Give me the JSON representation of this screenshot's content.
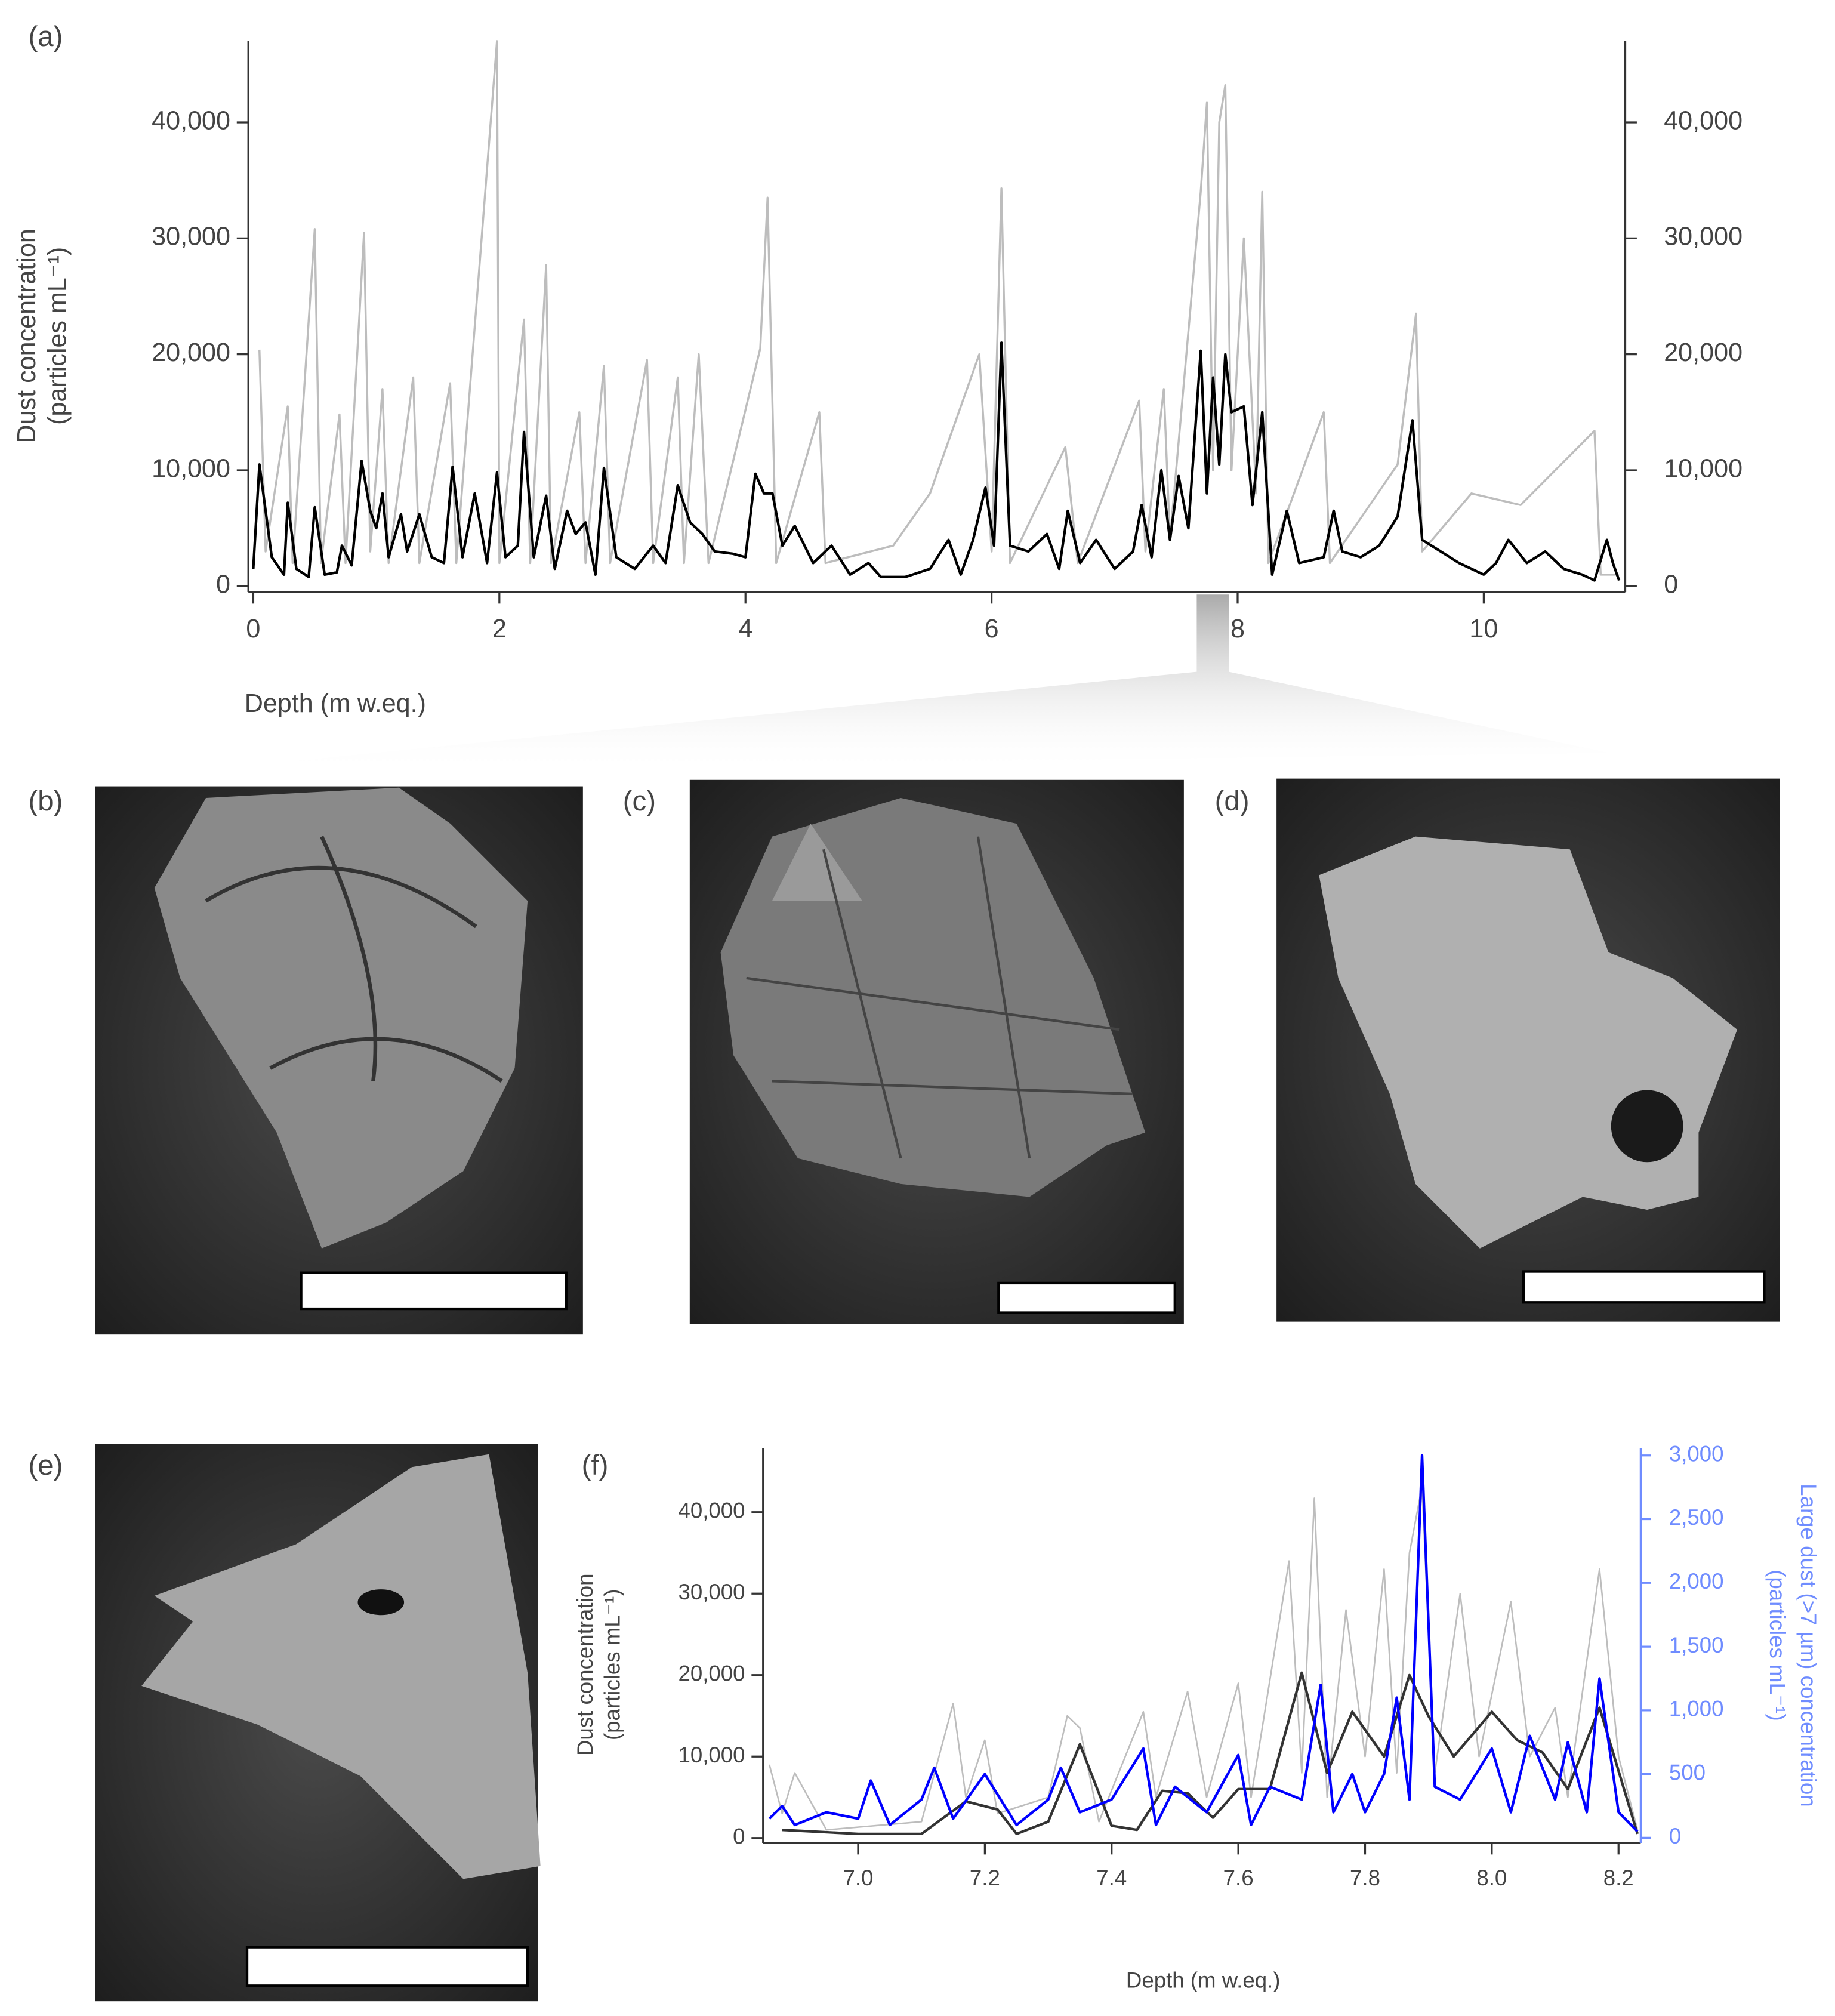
{
  "panel_labels": [
    "(a)",
    "(b)",
    "(c)",
    "(d)",
    "(e)",
    "(f)"
  ],
  "chart_data": [
    {
      "type": "line",
      "xlabel": "Depth (m w.eq.)",
      "ylabel": [
        "Dust concentration",
        "(particles mL⁻¹)"
      ],
      "xlim": [
        -0.04,
        11.15
      ],
      "ylim": [
        -500,
        47000
      ],
      "xticks": [
        0,
        2,
        4,
        6,
        8,
        10
      ],
      "yticks": [
        0,
        {
          "value": 10000,
          "label": "10,000"
        },
        {
          "value": 20000,
          "label": "20,000"
        },
        {
          "value": 30000,
          "label": "30,000"
        },
        {
          "value": 40000,
          "label": "40,000"
        }
      ],
      "mirror_y_axis": true,
      "series": [
        {
          "color": "#bdbdbd",
          "x": [
            0.05,
            0.1,
            0.28,
            0.32,
            0.5,
            0.55,
            0.7,
            0.75,
            0.9,
            0.95,
            1.05,
            1.1,
            1.3,
            1.35,
            1.6,
            1.65,
            1.98,
            2.0,
            2.2,
            2.25,
            2.38,
            2.42,
            2.65,
            2.7,
            2.85,
            2.9,
            3.2,
            3.25,
            3.45,
            3.5,
            3.62,
            3.7,
            4.12,
            4.18,
            4.25,
            4.6,
            4.65,
            5.2,
            5.5,
            5.9,
            6.0,
            6.08,
            6.15,
            6.6,
            6.7,
            7.2,
            7.25,
            7.4,
            7.45,
            7.7,
            7.75,
            7.8,
            7.85,
            7.9,
            7.95,
            8.05,
            8.15,
            8.2,
            8.25,
            8.7,
            8.75,
            9.3,
            9.45,
            9.5,
            9.9,
            10.3,
            10.9,
            10.95,
            11.1
          ],
          "values": [
            20400,
            3000,
            15500,
            2000,
            30800,
            2000,
            14800,
            2000,
            30500,
            3000,
            17000,
            2000,
            18000,
            2000,
            17500,
            2000,
            47000,
            2000,
            23000,
            2000,
            27700,
            2000,
            15000,
            2000,
            19000,
            2000,
            19500,
            2000,
            18000,
            2000,
            20000,
            2000,
            20500,
            33500,
            2000,
            15000,
            2000,
            3500,
            8000,
            20000,
            3000,
            34300,
            2000,
            12000,
            2000,
            16000,
            3000,
            17000,
            4000,
            34000,
            41700,
            10000,
            40000,
            43200,
            10000,
            30000,
            8000,
            34000,
            2000,
            15000,
            2000,
            10500,
            23500,
            3000,
            8000,
            7000,
            13400,
            1000,
            1000
          ]
        },
        {
          "color": "#000000",
          "x": [
            0,
            0.05,
            0.15,
            0.25,
            0.28,
            0.35,
            0.45,
            0.5,
            0.58,
            0.68,
            0.72,
            0.8,
            0.88,
            0.95,
            1.0,
            1.05,
            1.1,
            1.2,
            1.25,
            1.35,
            1.45,
            1.55,
            1.62,
            1.7,
            1.8,
            1.9,
            1.98,
            2.05,
            2.15,
            2.2,
            2.28,
            2.38,
            2.45,
            2.55,
            2.62,
            2.7,
            2.78,
            2.85,
            2.95,
            3.1,
            3.25,
            3.35,
            3.45,
            3.55,
            3.65,
            3.75,
            3.9,
            4.0,
            4.08,
            4.15,
            4.22,
            4.3,
            4.4,
            4.55,
            4.7,
            4.85,
            5.0,
            5.1,
            5.3,
            5.5,
            5.65,
            5.75,
            5.85,
            5.95,
            6.02,
            6.08,
            6.15,
            6.3,
            6.45,
            6.55,
            6.62,
            6.72,
            6.85,
            7.0,
            7.15,
            7.22,
            7.3,
            7.38,
            7.45,
            7.52,
            7.6,
            7.7,
            7.75,
            7.8,
            7.85,
            7.9,
            7.95,
            8.05,
            8.12,
            8.2,
            8.28,
            8.4,
            8.5,
            8.7,
            8.78,
            8.85,
            9.0,
            9.15,
            9.3,
            9.42,
            9.5,
            9.65,
            9.8,
            9.9,
            10.0,
            10.1,
            10.2,
            10.35,
            10.5,
            10.65,
            10.8,
            10.9,
            11.0,
            11.05,
            11.1
          ],
          "values": [
            1500,
            10500,
            2500,
            1000,
            7200,
            1500,
            800,
            6800,
            1000,
            1200,
            3500,
            1800,
            10800,
            6500,
            5000,
            8000,
            2500,
            6200,
            3000,
            6200,
            2500,
            2000,
            10300,
            2500,
            8000,
            2000,
            9800,
            2500,
            3500,
            13300,
            2500,
            7800,
            1500,
            6500,
            4500,
            5500,
            1000,
            10200,
            2500,
            1500,
            3500,
            2000,
            8700,
            5500,
            4500,
            3000,
            2800,
            2500,
            9700,
            8000,
            8000,
            3500,
            5200,
            2000,
            3500,
            1000,
            2000,
            800,
            800,
            1500,
            4000,
            1000,
            4000,
            8500,
            3500,
            21000,
            3500,
            3000,
            4500,
            1500,
            6500,
            2000,
            4000,
            1500,
            3000,
            7000,
            2500,
            10000,
            4000,
            9500,
            5000,
            20300,
            8000,
            18000,
            10500,
            20000,
            15000,
            15500,
            7000,
            15000,
            1000,
            6500,
            2000,
            2500,
            6500,
            3000,
            2500,
            3500,
            6000,
            14300,
            4000,
            3000,
            2000,
            1500,
            1000,
            2000,
            4000,
            2000,
            3000,
            1500,
            1000,
            500,
            4000,
            2000,
            500
          ]
        }
      ]
    },
    {
      "type": "line",
      "xlabel": "Depth (m w.eq.)",
      "ylabel": [
        "Dust concentration",
        "(particles mL⁻¹)"
      ],
      "y2label": [
        "Large dust (>7 µm) concentration",
        "(particles mL⁻¹)"
      ],
      "y2color": "#6f8cff",
      "xlim": [
        6.85,
        8.235
      ],
      "ylim": [
        -600,
        47900
      ],
      "y2lim": [
        -40,
        3060
      ],
      "xticks": [
        {
          "value": 7.0,
          "label": "7.0"
        },
        7.2,
        7.4,
        7.6,
        7.8,
        {
          "value": 8.0,
          "label": "8.0"
        },
        8.2
      ],
      "yticks": [
        0,
        {
          "value": 10000,
          "label": "10,000"
        },
        {
          "value": 20000,
          "label": "20,000"
        },
        {
          "value": 30000,
          "label": "30,000"
        },
        {
          "value": 40000,
          "label": "40,000"
        }
      ],
      "y2ticks": [
        0,
        500,
        {
          "value": 1000,
          "label": "1,000"
        },
        {
          "value": 1500,
          "label": "1,500"
        },
        {
          "value": 2000,
          "label": "2,000"
        },
        {
          "value": 2500,
          "label": "2,500"
        },
        {
          "value": 3000,
          "label": "3,000"
        }
      ],
      "series": [
        {
          "color": "#bdbdbd",
          "x": [
            6.86,
            6.88,
            6.9,
            6.95,
            7.1,
            7.15,
            7.17,
            7.2,
            7.22,
            7.3,
            7.33,
            7.35,
            7.38,
            7.45,
            7.47,
            7.52,
            7.55,
            7.6,
            7.62,
            7.68,
            7.7,
            7.72,
            7.74,
            7.77,
            7.8,
            7.83,
            7.85,
            7.87,
            7.89,
            7.91,
            7.95,
            7.98,
            8.03,
            8.06,
            8.1,
            8.12,
            8.17,
            8.2,
            8.23
          ],
          "values": [
            9000,
            3000,
            8000,
            1000,
            2000,
            16500,
            5000,
            12000,
            3000,
            5000,
            15000,
            13500,
            2000,
            15500,
            5000,
            18000,
            5000,
            19000,
            5000,
            34000,
            8000,
            41700,
            5000,
            28000,
            10000,
            33000,
            8000,
            35000,
            43200,
            8000,
            30000,
            10000,
            29000,
            10000,
            16000,
            5000,
            33000,
            10000,
            1000
          ]
        },
        {
          "color": "#333333",
          "x": [
            6.88,
            7.0,
            7.1,
            7.17,
            7.22,
            7.25,
            7.3,
            7.35,
            7.4,
            7.44,
            7.48,
            7.52,
            7.56,
            7.6,
            7.65,
            7.7,
            7.74,
            7.78,
            7.83,
            7.87,
            7.9,
            7.94,
            8.0,
            8.04,
            8.08,
            8.12,
            8.17,
            8.23
          ],
          "values": [
            1000,
            500,
            500,
            4500,
            3500,
            500,
            2000,
            11500,
            1500,
            1000,
            5800,
            5500,
            2500,
            6000,
            6000,
            20300,
            8000,
            15500,
            10000,
            20000,
            15000,
            10000,
            15500,
            12000,
            10500,
            6000,
            16000,
            500
          ]
        },
        {
          "color": "#0000ff",
          "axis": "y2",
          "x": [
            6.86,
            6.88,
            6.9,
            6.95,
            7.0,
            7.02,
            7.05,
            7.1,
            7.12,
            7.15,
            7.2,
            7.25,
            7.3,
            7.32,
            7.35,
            7.4,
            7.45,
            7.47,
            7.5,
            7.55,
            7.6,
            7.62,
            7.65,
            7.7,
            7.73,
            7.75,
            7.78,
            7.8,
            7.83,
            7.85,
            7.87,
            7.89,
            7.91,
            7.95,
            8.0,
            8.03,
            8.06,
            8.1,
            8.12,
            8.15,
            8.17,
            8.2,
            8.23
          ],
          "values": [
            150,
            250,
            100,
            200,
            150,
            450,
            100,
            300,
            550,
            150,
            500,
            100,
            300,
            550,
            200,
            300,
            700,
            100,
            400,
            200,
            650,
            100,
            400,
            300,
            1200,
            200,
            500,
            200,
            500,
            1100,
            300,
            3000,
            400,
            300,
            700,
            200,
            800,
            300,
            750,
            200,
            1250,
            200,
            50
          ]
        }
      ]
    }
  ]
}
